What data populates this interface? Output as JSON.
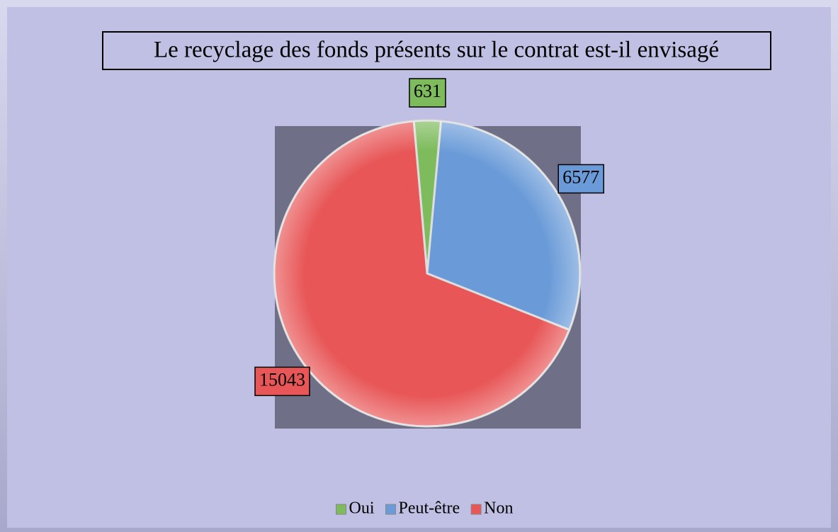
{
  "chart_data": {
    "type": "pie",
    "title": "Le recyclage des fonds présents sur le contrat est-il envisagé",
    "categories": [
      "Oui",
      "Peut-être",
      "Non"
    ],
    "values": [
      631,
      6577,
      15043
    ],
    "colors": [
      "#7dbb5c",
      "#6a9bd8",
      "#e85657"
    ],
    "legend": "bottom"
  }
}
